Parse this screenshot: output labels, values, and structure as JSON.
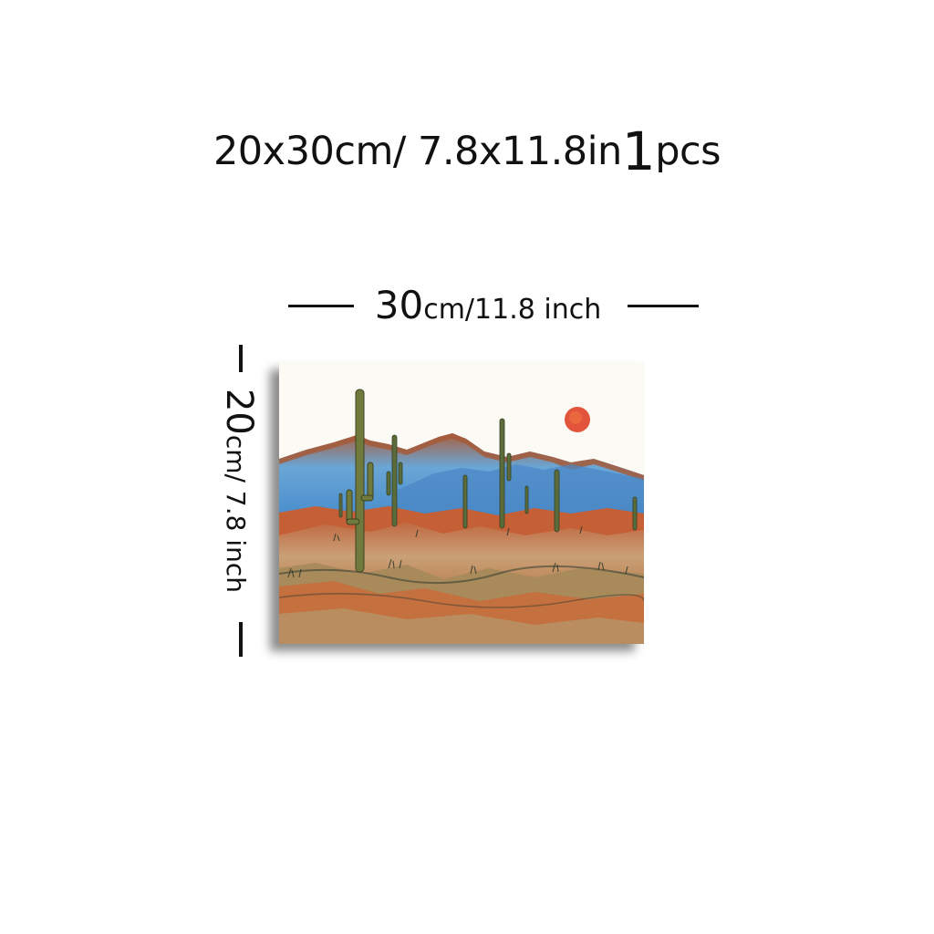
{
  "headline": {
    "dimensions": "20x30cm/ 7.8x11.8in",
    "quantity": "1",
    "unit": "pcs"
  },
  "width_label": {
    "number": "30",
    "unit_text": "cm/11.8 inch"
  },
  "height_label": {
    "number": "20",
    "unit_text": "cm/ 7.8 inch"
  },
  "artwork": {
    "subject": "desert-landscape-painting",
    "colors": {
      "sky": "#fbfaf5",
      "sun": "#e0452b",
      "mountain_blue": "#5b9fd6",
      "mountain_rust": "#b0633d",
      "ground_ochre": "#c99766",
      "ground_rust": "#c5673d",
      "cactus": "#6f7a3c"
    }
  }
}
